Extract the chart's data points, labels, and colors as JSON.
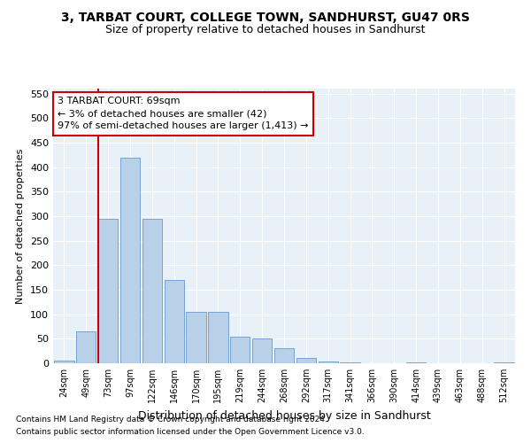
{
  "title": "3, TARBAT COURT, COLLEGE TOWN, SANDHURST, GU47 0RS",
  "subtitle": "Size of property relative to detached houses in Sandhurst",
  "xlabel": "Distribution of detached houses by size in Sandhurst",
  "ylabel": "Number of detached properties",
  "categories": [
    "24sqm",
    "49sqm",
    "73sqm",
    "97sqm",
    "122sqm",
    "146sqm",
    "170sqm",
    "195sqm",
    "219sqm",
    "244sqm",
    "268sqm",
    "292sqm",
    "317sqm",
    "341sqm",
    "366sqm",
    "390sqm",
    "414sqm",
    "439sqm",
    "463sqm",
    "488sqm",
    "512sqm"
  ],
  "values": [
    5,
    65,
    295,
    420,
    295,
    170,
    105,
    105,
    55,
    50,
    30,
    10,
    3,
    2,
    0,
    0,
    2,
    0,
    0,
    0,
    2
  ],
  "bar_color": "#b8d0e8",
  "bar_edge_color": "#6699cc",
  "background_color": "#e8f0f8",
  "grid_color": "#ffffff",
  "red_line_index": 2,
  "annotation_text": "3 TARBAT COURT: 69sqm\n← 3% of detached houses are smaller (42)\n97% of semi-detached houses are larger (1,413) →",
  "annotation_box_color": "#ffffff",
  "annotation_box_edge": "#cc0000",
  "ylim": [
    0,
    560
  ],
  "yticks": [
    0,
    50,
    100,
    150,
    200,
    250,
    300,
    350,
    400,
    450,
    500,
    550
  ],
  "footnote1": "Contains HM Land Registry data © Crown copyright and database right 2024.",
  "footnote2": "Contains public sector information licensed under the Open Government Licence v3.0."
}
